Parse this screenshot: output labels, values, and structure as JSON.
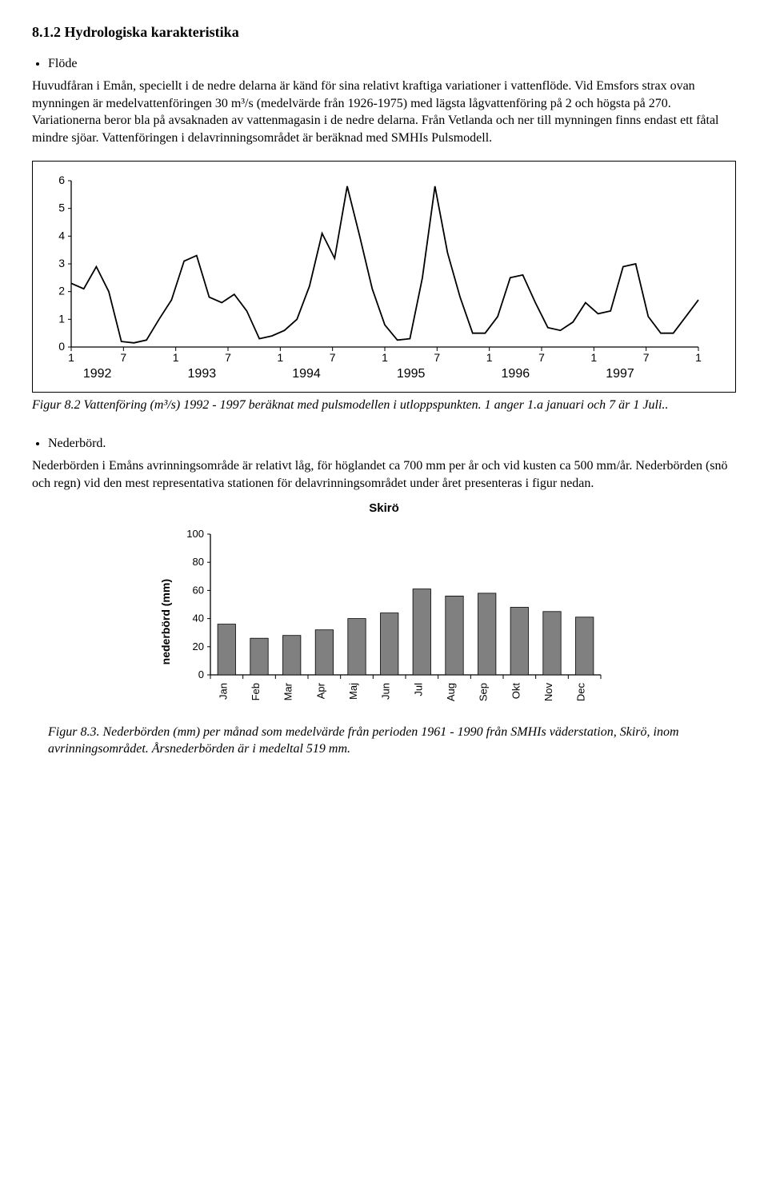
{
  "section_heading": "8.1.2  Hydrologiska karakteristika",
  "flow": {
    "bullet": "Flöde",
    "para": "Huvudfåran i Emån, speciellt i de nedre delarna är känd för sina relativt kraftiga variationer i vattenflöde. Vid Emsfors strax ovan mynningen är medelvattenföringen 30 m³/s (medelvärde från 1926-1975) med lägsta lågvattenföring på 2 och högsta på 270. Variationerna beror bla på avsaknaden av vattenmagasin i de nedre delarna. Från Vetlanda och ner till mynningen finns endast ett fåtal mindre sjöar. Vattenföringen i delavrinningsområdet är beräknad med SMHIs Pulsmodell."
  },
  "line_chart": {
    "type": "line",
    "ylim": [
      0,
      6
    ],
    "ytick_step": 1,
    "line_color": "#000000",
    "line_width": 1.8,
    "background_color": "#ffffff",
    "x_major_labels": [
      "1992",
      "1993",
      "1994",
      "1995",
      "1996",
      "1997"
    ],
    "x_tick_pattern": [
      "1",
      "7",
      "1",
      "7",
      "1",
      "7",
      "1",
      "7",
      "1",
      "7",
      "1",
      "7",
      "1"
    ],
    "values": [
      2.3,
      2.1,
      2.9,
      2.0,
      0.2,
      0.15,
      0.25,
      1.0,
      1.7,
      3.1,
      3.3,
      1.8,
      1.6,
      1.9,
      1.3,
      0.3,
      0.4,
      0.6,
      1.0,
      2.2,
      4.1,
      3.2,
      5.8,
      4.0,
      2.1,
      0.8,
      0.25,
      0.3,
      2.5,
      5.8,
      3.4,
      1.8,
      0.5,
      0.5,
      1.1,
      2.5,
      2.6,
      1.6,
      0.7,
      0.6,
      0.9,
      1.6,
      1.2,
      1.3,
      2.9,
      3.0,
      1.1,
      0.5,
      0.5,
      1.1,
      1.7
    ]
  },
  "fig82_caption": "Figur 8.2 Vattenföring (m³/s) 1992 - 1997  beräknat med pulsmodellen i utloppspunkten. 1 anger 1.a januari och 7 är 1 Juli..",
  "precip": {
    "bullet": "Nederbörd.",
    "para": "Nederbörden i Emåns avrinningsområde är relativt låg, för höglandet ca 700 mm per år och vid kusten ca 500 mm/år. Nederbörden (snö och regn) vid den mest representativa stationen för delavrinningsområdet under året presenteras i figur nedan."
  },
  "bar_chart": {
    "type": "bar",
    "title": "Skirö",
    "ylabel": "nederbörd (mm)",
    "ylim": [
      0,
      100
    ],
    "ytick_step": 20,
    "categories": [
      "Jan",
      "Feb",
      "Mar",
      "Apr",
      "Maj",
      "Jun",
      "Jul",
      "Aug",
      "Sep",
      "Okt",
      "Nov",
      "Dec"
    ],
    "values": [
      36,
      26,
      28,
      32,
      40,
      44,
      61,
      56,
      58,
      48,
      45,
      41
    ],
    "bar_color": "#808080",
    "border_color": "#000000",
    "background_color": "#ffffff",
    "bar_width": 0.55
  },
  "fig83_caption": "Figur 8.3. Nederbörden (mm) per månad som medelvärde från perioden 1961 - 1990 från SMHIs väderstation, Skirö, inom avrinningsområdet. Årsnederbörden är i medeltal 519 mm."
}
